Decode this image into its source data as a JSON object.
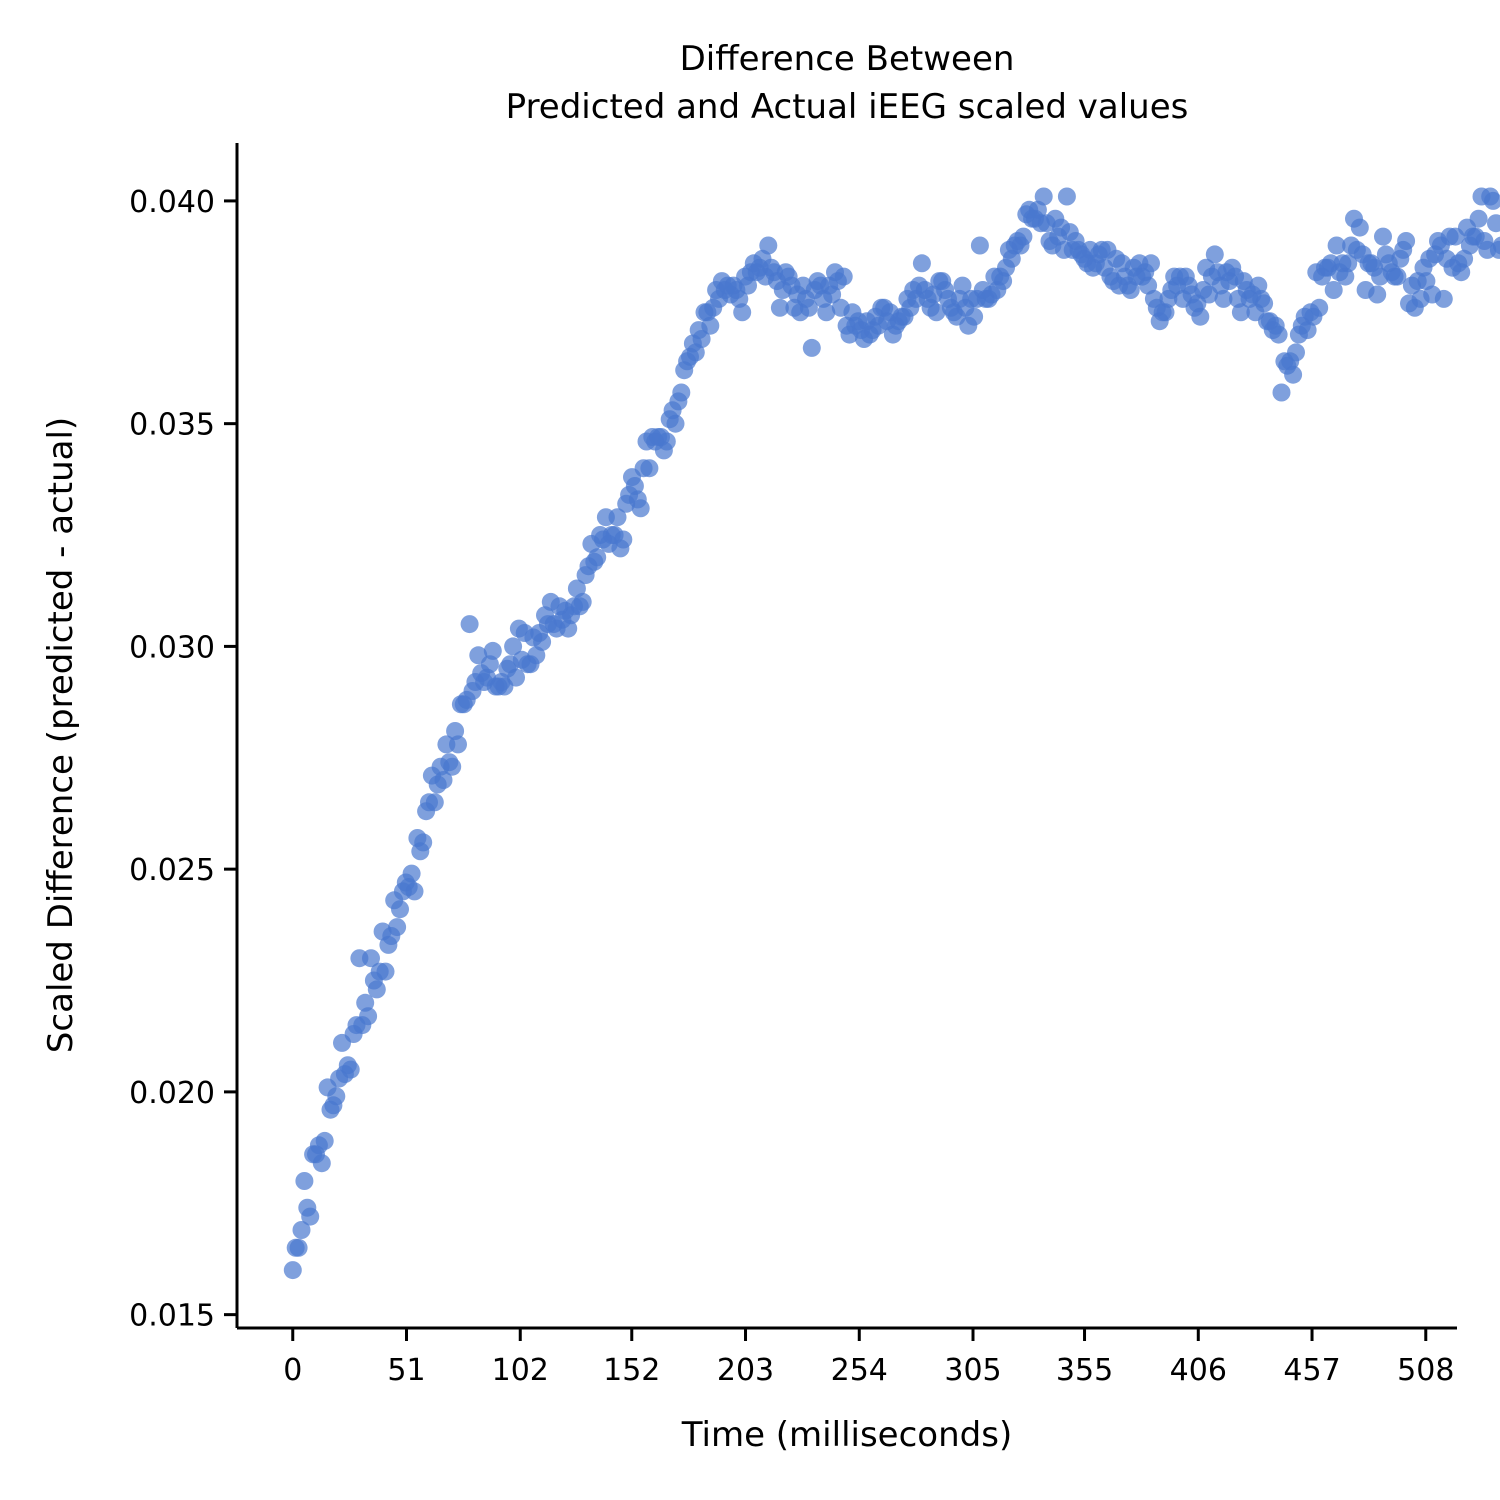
{
  "chart_data": {
    "type": "scatter",
    "title": [
      "Difference Between",
      "Predicted and Actual iEEG scaled values"
    ],
    "xlabel": "Time (milliseconds)",
    "ylabel": "Scaled Difference (predicted - actual)",
    "xlim": [
      -25,
      522
    ],
    "ylim": [
      0.0147,
      0.0413
    ],
    "xticks": [
      0,
      51,
      102,
      152,
      203,
      254,
      305,
      355,
      406,
      457,
      508
    ],
    "yticks": [
      "0.015",
      "0.020",
      "0.025",
      "0.030",
      "0.035",
      "0.040"
    ],
    "grid": false,
    "legend": "none",
    "point_color": "#4878cf",
    "point_alpha": 0.7,
    "x_start": 0,
    "x_step": 1.3,
    "y": [
      0.016,
      0.0165,
      0.0165,
      0.0169,
      0.018,
      0.0174,
      0.0172,
      0.0186,
      0.0186,
      0.0188,
      0.0184,
      0.0189,
      0.0201,
      0.0196,
      0.0197,
      0.0199,
      0.0203,
      0.0211,
      0.0204,
      0.0206,
      0.0205,
      0.0213,
      0.0215,
      0.023,
      0.0215,
      0.022,
      0.0217,
      0.023,
      0.0225,
      0.0223,
      0.0227,
      0.0236,
      0.0227,
      0.0233,
      0.0235,
      0.0243,
      0.0237,
      0.0241,
      0.0245,
      0.0247,
      0.0246,
      0.0249,
      0.0245,
      0.0257,
      0.0254,
      0.0256,
      0.0263,
      0.0265,
      0.0271,
      0.0265,
      0.0269,
      0.0273,
      0.027,
      0.0278,
      0.0274,
      0.0273,
      0.0281,
      0.0278,
      0.0287,
      0.0287,
      0.0288,
      0.0305,
      0.029,
      0.0292,
      0.0298,
      0.0294,
      0.0292,
      0.0293,
      0.0296,
      0.0299,
      0.0291,
      0.0291,
      0.0292,
      0.0291,
      0.0295,
      0.0296,
      0.03,
      0.0293,
      0.0304,
      0.0297,
      0.0303,
      0.0296,
      0.0296,
      0.0302,
      0.0298,
      0.0303,
      0.0301,
      0.0307,
      0.0305,
      0.031,
      0.0305,
      0.0304,
      0.0309,
      0.0306,
      0.0308,
      0.0304,
      0.0307,
      0.0309,
      0.0313,
      0.0309,
      0.031,
      0.0316,
      0.0318,
      0.0323,
      0.0319,
      0.032,
      0.0325,
      0.0324,
      0.0329,
      0.0323,
      0.0325,
      0.0325,
      0.0329,
      0.0322,
      0.0324,
      0.0332,
      0.0334,
      0.0338,
      0.0336,
      0.0333,
      0.0331,
      0.034,
      0.0346,
      0.034,
      0.0347,
      0.0346,
      0.0347,
      0.0347,
      0.0344,
      0.0346,
      0.0351,
      0.0353,
      0.035,
      0.0355,
      0.0357,
      0.0362,
      0.0364,
      0.0365,
      0.0368,
      0.0366,
      0.0371,
      0.0369,
      0.0375,
      0.0375,
      0.0372,
      0.0376,
      0.038,
      0.0378,
      0.0382,
      0.038,
      0.0381,
      0.0379,
      0.0381,
      0.038,
      0.0378,
      0.0375,
      0.0383,
      0.0381,
      0.0384,
      0.0386,
      0.0384,
      0.0385,
      0.0387,
      0.0383,
      0.039,
      0.0385,
      0.0384,
      0.0382,
      0.0376,
      0.038,
      0.0384,
      0.0383,
      0.0381,
      0.0376,
      0.0379,
      0.0375,
      0.0381,
      0.0378,
      0.0376,
      0.0367,
      0.038,
      0.0382,
      0.0381,
      0.0378,
      0.0375,
      0.0381,
      0.0379,
      0.0384,
      0.0382,
      0.0376,
      0.0383,
      0.0372,
      0.037,
      0.0375,
      0.0372,
      0.0373,
      0.0371,
      0.0369,
      0.0373,
      0.037,
      0.0371,
      0.0374,
      0.0372,
      0.0376,
      0.0376,
      0.0373,
      0.0375,
      0.037,
      0.0372,
      0.0373,
      0.0374,
      0.0374,
      0.0378,
      0.0376,
      0.038,
      0.0378,
      0.0381,
      0.0386,
      0.038,
      0.0378,
      0.0376,
      0.0379,
      0.0375,
      0.0382,
      0.0382,
      0.038,
      0.0378,
      0.0376,
      0.0375,
      0.0374,
      0.0378,
      0.0381,
      0.0376,
      0.0372,
      0.0378,
      0.0374,
      0.0378,
      0.039,
      0.038,
      0.0378,
      0.0378,
      0.0379,
      0.0383,
      0.038,
      0.0383,
      0.0382,
      0.0385,
      0.0389,
      0.0387,
      0.039,
      0.0391,
      0.039,
      0.0392,
      0.0397,
      0.0398,
      0.0396,
      0.0396,
      0.0398,
      0.0395,
      0.0401,
      0.0395,
      0.0391,
      0.039,
      0.0396,
      0.0392,
      0.0394,
      0.0389,
      0.0401,
      0.0393,
      0.0389,
      0.0391,
      0.0389,
      0.0388,
      0.0387,
      0.0386,
      0.0389,
      0.0385,
      0.0386,
      0.0388,
      0.0389,
      0.0385,
      0.0389,
      0.0383,
      0.0382,
      0.0387,
      0.0381,
      0.0386,
      0.0383,
      0.0381,
      0.038,
      0.0385,
      0.0383,
      0.0386,
      0.0383,
      0.0384,
      0.0381,
      0.0386,
      0.0378,
      0.0376,
      0.0373,
      0.0375,
      0.0375,
      0.0378,
      0.038,
      0.0383,
      0.0381,
      0.0383,
      0.0378,
      0.0383,
      0.0381,
      0.0379,
      0.0376,
      0.0377,
      0.0374,
      0.038,
      0.0385,
      0.0379,
      0.0383,
      0.0388,
      0.0384,
      0.0381,
      0.0378,
      0.0384,
      0.0382,
      0.0385,
      0.0383,
      0.0378,
      0.0375,
      0.0382,
      0.038,
      0.0378,
      0.0379,
      0.0375,
      0.0381,
      0.0378,
      0.0377,
      0.0373,
      0.0373,
      0.0371,
      0.0372,
      0.037,
      0.0357,
      0.0364,
      0.0363,
      0.0364,
      0.0361,
      0.0366,
      0.037,
      0.0372,
      0.0374,
      0.0371,
      0.0375,
      0.0374,
      0.0384,
      0.0376,
      0.0383,
      0.0385,
      0.0385,
      0.0386,
      0.038,
      0.039,
      0.0384,
      0.0386,
      0.0383,
      0.0386,
      0.039,
      0.0396,
      0.0389,
      0.0394,
      0.0388,
      0.038,
      0.0386,
      0.0386,
      0.0385,
      0.0379,
      0.0383,
      0.0392,
      0.0388,
      0.0386,
      0.0384,
      0.0383,
      0.0383,
      0.0387,
      0.0389,
      0.0391,
      0.0377,
      0.0381,
      0.0376,
      0.0382,
      0.0378,
      0.0385,
      0.0382,
      0.0387,
      0.0379,
      0.0388,
      0.0391,
      0.039,
      0.0378,
      0.0387,
      0.0392,
      0.0385,
      0.0392,
      0.0386,
      0.0384,
      0.0387,
      0.0394,
      0.039,
      0.0392,
      0.0392,
      0.0396,
      0.0401,
      0.0391,
      0.0389,
      0.0401,
      0.04,
      0.0395,
      0.0389,
      0.039
    ]
  }
}
